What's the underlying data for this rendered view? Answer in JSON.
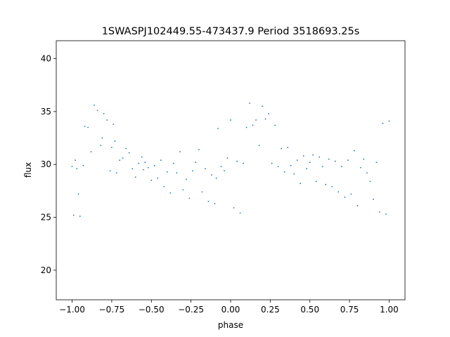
{
  "chart_data": {
    "type": "scatter",
    "title": "1SWASPJ102449.55-473437.9 Period 3518693.25s",
    "xlabel": "phase",
    "ylabel": "flux",
    "xlim": [
      -1.1,
      1.1
    ],
    "ylim": [
      17.2,
      41.7
    ],
    "xticks": [
      {
        "value": -1.0,
        "label": "−1.00"
      },
      {
        "value": -0.75,
        "label": "−0.75"
      },
      {
        "value": -0.5,
        "label": "−0.50"
      },
      {
        "value": -0.25,
        "label": "−0.25"
      },
      {
        "value": 0.0,
        "label": "0.00"
      },
      {
        "value": 0.25,
        "label": "0.25"
      },
      {
        "value": 0.5,
        "label": "0.50"
      },
      {
        "value": 0.75,
        "label": "0.75"
      },
      {
        "value": 1.0,
        "label": "1.00"
      }
    ],
    "yticks": [
      {
        "value": 20,
        "label": "20"
      },
      {
        "value": 25,
        "label": "25"
      },
      {
        "value": 30,
        "label": "30"
      },
      {
        "value": 35,
        "label": "35"
      },
      {
        "value": 40,
        "label": "40"
      }
    ],
    "grid": false,
    "legend": "none",
    "marker_color": "#1f77b4",
    "series": [
      {
        "x": [
          -1.0,
          -0.99,
          -0.98,
          -0.97,
          -0.96,
          -0.95,
          -0.93,
          -0.92,
          -0.9,
          -0.88,
          -0.86,
          -0.84,
          -0.82,
          -0.81,
          -0.8,
          -0.78,
          -0.76,
          -0.75,
          -0.74,
          -0.73,
          -0.72,
          -0.7,
          -0.68,
          -0.66,
          -0.64,
          -0.62,
          -0.6,
          -0.58,
          -0.56,
          -0.55,
          -0.54,
          -0.52,
          -0.5,
          -0.48,
          -0.46,
          -0.44,
          -0.42,
          -0.4,
          -0.38,
          -0.36,
          -0.34,
          -0.32,
          -0.3,
          -0.28,
          -0.26,
          -0.24,
          -0.22,
          -0.2,
          -0.18,
          -0.16,
          -0.14,
          -0.12,
          -0.1,
          -0.09,
          -0.08,
          -0.06,
          -0.04,
          -0.02,
          0.0,
          0.02,
          0.04,
          0.06,
          0.08,
          0.1,
          0.12,
          0.14,
          0.16,
          0.18,
          0.2,
          0.22,
          0.24,
          0.26,
          0.28,
          0.3,
          0.32,
          0.34,
          0.36,
          0.38,
          0.4,
          0.42,
          0.44,
          0.46,
          0.48,
          0.5,
          0.52,
          0.54,
          0.56,
          0.58,
          0.6,
          0.62,
          0.64,
          0.66,
          0.68,
          0.7,
          0.72,
          0.74,
          0.76,
          0.78,
          0.8,
          0.82,
          0.84,
          0.86,
          0.88,
          0.9,
          0.92,
          0.94,
          0.96,
          0.98,
          1.0
        ],
        "y": [
          29.8,
          25.2,
          30.4,
          29.6,
          27.2,
          25.1,
          29.9,
          33.6,
          33.5,
          31.2,
          35.6,
          35.1,
          31.8,
          32.5,
          34.8,
          34.2,
          29.4,
          31.6,
          33.8,
          32.2,
          29.2,
          30.4,
          30.6,
          31.5,
          31.1,
          29.6,
          28.8,
          30.1,
          30.7,
          29.5,
          30.2,
          29.7,
          28.5,
          29.9,
          28.7,
          30.4,
          27.9,
          29.3,
          27.3,
          30.1,
          29.2,
          31.2,
          27.6,
          28.6,
          26.8,
          29.4,
          30.2,
          31.4,
          27.4,
          29.6,
          26.5,
          29.0,
          26.3,
          28.7,
          33.4,
          29.8,
          29.4,
          30.6,
          34.2,
          25.9,
          30.3,
          25.4,
          30.1,
          33.5,
          35.8,
          33.7,
          34.2,
          31.8,
          35.5,
          34.3,
          34.8,
          30.1,
          33.7,
          29.8,
          31.5,
          29.3,
          31.6,
          29.9,
          29.1,
          30.4,
          28.2,
          30.8,
          29.6,
          30.2,
          30.9,
          28.4,
          30.7,
          29.8,
          28.1,
          30.5,
          27.9,
          30.3,
          27.4,
          29.8,
          26.9,
          30.4,
          27.2,
          31.3,
          26.1,
          29.7,
          30.5,
          29.2,
          28.4,
          26.7,
          30.2,
          25.5,
          33.9,
          25.3,
          34.1
        ]
      }
    ]
  }
}
